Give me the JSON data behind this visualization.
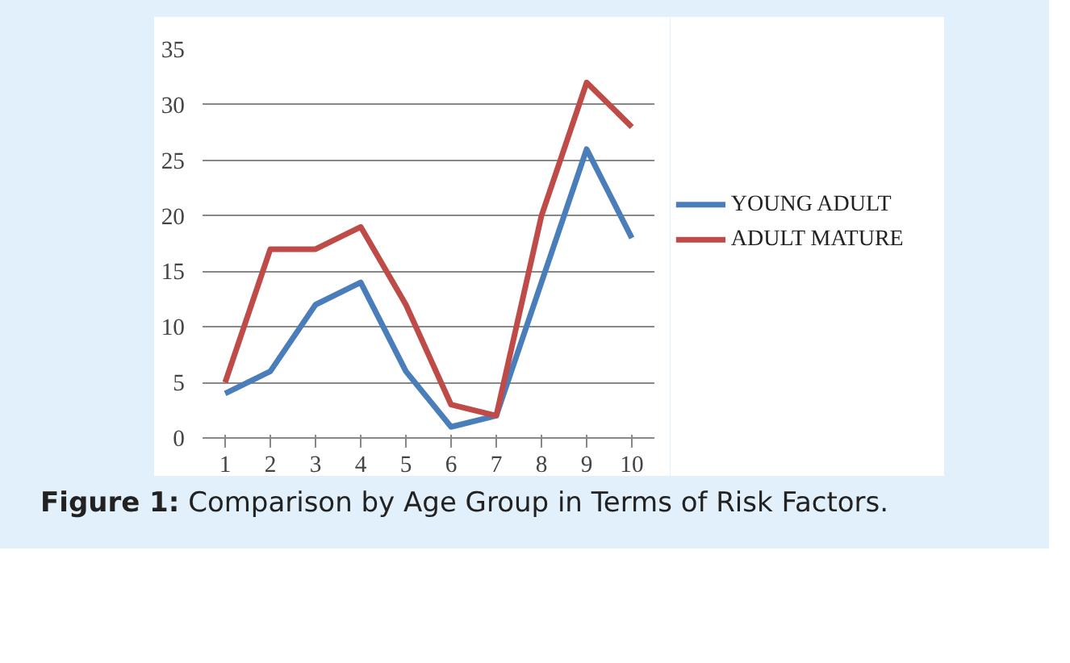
{
  "chart_data": {
    "type": "line",
    "categories": [
      "1",
      "2",
      "3",
      "4",
      "5",
      "6",
      "7",
      "8",
      "9",
      "10"
    ],
    "series": [
      {
        "name": "YOUNG ADULT",
        "color": "#4a7ebb",
        "values": [
          4,
          6,
          12,
          14,
          6,
          1,
          2,
          14,
          26,
          18
        ]
      },
      {
        "name": "ADULT MATURE",
        "color": "#be4b48",
        "values": [
          5,
          17,
          17,
          19,
          12,
          3,
          2,
          20,
          32,
          28
        ]
      }
    ],
    "ylim": [
      0,
      35
    ],
    "yticks": [
      0,
      5,
      10,
      15,
      20,
      25,
      30,
      35
    ],
    "grid": "y",
    "legend": "right",
    "marker": "none",
    "line_style": "solid",
    "annotations": [
      "Figure 1: Comparison by Age Group in Terms of Risk Factors."
    ]
  }
}
